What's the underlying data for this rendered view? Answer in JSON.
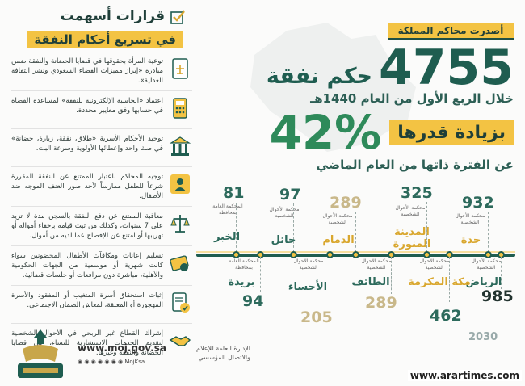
{
  "header": {
    "tag": "أصدرت محاكم المملكة",
    "count": "4755",
    "count_label": "حكم نفقة",
    "period": "خلال الربع الأول من العام 1440هـ",
    "increase_label": "بزيادة قدرها",
    "increase_pct": "42%",
    "same_period": "عن الفترة ذاتها من العام الماضي"
  },
  "left_panel": {
    "title": "قرارات أسهمت",
    "subtitle": "في تسريع أحكام النفقة",
    "items": [
      {
        "icon": "scales-document-icon",
        "text": "توعية المرأة بحقوقها في قضايا الحضانة والنفقة ضمن مبادرة «إبراز مميزات القضاء السعودي ونشر الثقافة العدلية»."
      },
      {
        "icon": "calculator-icon",
        "text": "اعتماد «الحاسبة الإلكترونية للنفقة» لمساعدة القضاة في حسابها وفق معايير محددة."
      },
      {
        "icon": "court-building-icon",
        "text": "توحيد الأحكام الأسرية «طلاق، نفقة، زيارة، حضانة» في صك واحد وإعطائها الأولوية وسرعة البت."
      },
      {
        "icon": "person-warning-icon",
        "text": "توجيه المحاكم باعتبار الممتنع عن النفقة المقررة شرعاً للطفل ممارساً لأحد صور العنف الموجه ضد الأطفال."
      },
      {
        "icon": "balance-icon",
        "text": "معاقبة الممتنع عن دفع النفقة بالسجن مدة لا تزيد على 7 سنوات، وكذلك من ثبت قيامه بإخفاء أمواله أو تهريبها أو امتنع عن الإفصاح عما لديه من أموال."
      },
      {
        "icon": "money-card-icon",
        "text": "تسليم إعانات ومكافآت الأطفال المحضونين سواء كانت شهرية أو موسمية من الجهات الحكومية والأهلية، مباشرة دون مرافعات أو جلسات قضائية."
      },
      {
        "icon": "document-check-icon",
        "text": "إثبات استحقاق أسرة المتغيب أو المفقود والأسرة المهجورة أو المعلقة، لمعاش الضمان الاجتماعي."
      },
      {
        "icon": "handshake-icon",
        "text": "إشراك القطاع غير الربحي في الأحوال الشخصية لتقديم الخدمات الاستشارية للنساء، في قضايا الحضانة والنفقة وغيرها."
      }
    ]
  },
  "cities_top": [
    {
      "num": "932",
      "court": "محكمة الأحوال الشخصية",
      "city": "جدة"
    },
    {
      "num": "325",
      "court": "محكمة الأحوال الشخصية",
      "city": "المدينة المنورة"
    },
    {
      "num": "289",
      "court": "محكمة الأحوال الشخصية",
      "city": "الدمام"
    },
    {
      "num": "97",
      "court": "محكمة الأحوال الشخصية",
      "city": "حائل"
    },
    {
      "num": "81",
      "court": "المحكمة العامة بمحافظة",
      "city": "الخبر"
    }
  ],
  "cities_bottom": [
    {
      "num": "985",
      "court": "محكمة الأحوال الشخصية",
      "city": "الرياض"
    },
    {
      "num": "462",
      "court": "محكمة الأحوال الشخصية",
      "city": "مكة المكرمة"
    },
    {
      "num": "289",
      "court": "محكمة الأحوال الشخصية",
      "city": "الطائف"
    },
    {
      "num": "205",
      "court": "محكمة الأحوال الشخصية",
      "city": "الأحساء"
    },
    {
      "num": "94",
      "court": "المحكمة العامة بمحافظة",
      "city": "بريدة"
    }
  ],
  "footer": {
    "url": "www.moj.gov.sa",
    "dept": "الإدارة العامة للإعلام والاتصال المؤسسي",
    "social": "◉ ◉ ◉ ◉ ◉ ◉ ◉ MojKsa"
  },
  "vision": "2030",
  "watermark": "www.arartimes.com",
  "colors": {
    "green": "#1f5d50",
    "gold": "#f3c343",
    "bright_green": "#2e8a5a"
  }
}
